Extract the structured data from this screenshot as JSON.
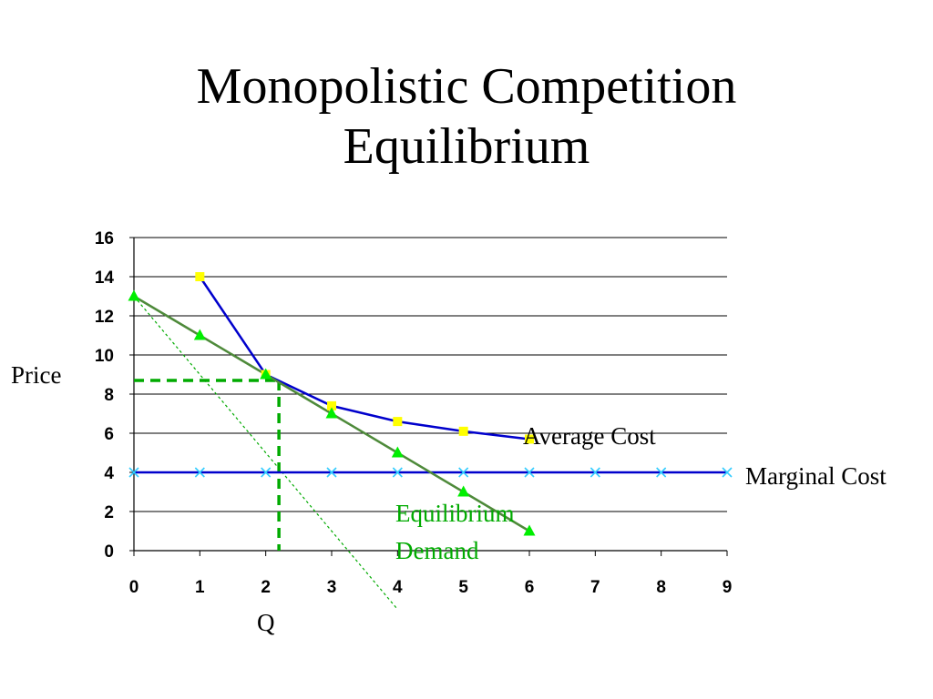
{
  "slide": {
    "title_line1": "Monopolistic Competition",
    "title_line2": "Equilibrium"
  },
  "chart_data": {
    "type": "line",
    "title": "Monopolistic Competition Equilibrium",
    "xlabel": "Q",
    "ylabel": "Price",
    "xlim": [
      0,
      9
    ],
    "ylim": [
      0,
      16
    ],
    "x_ticks": [
      0,
      1,
      2,
      3,
      4,
      5,
      6,
      7,
      8,
      9
    ],
    "y_ticks": [
      0,
      2,
      4,
      6,
      8,
      10,
      12,
      14,
      16
    ],
    "grid": {
      "horizontal": true,
      "vertical": false
    },
    "series": [
      {
        "name": "Average Cost",
        "color": "#0000CC",
        "marker": "square",
        "marker_color": "#FFFF00",
        "x": [
          1,
          2,
          3,
          4,
          5,
          6
        ],
        "y": [
          14,
          9,
          7.4,
          6.6,
          6.1,
          5.7
        ]
      },
      {
        "name": "Marginal Cost",
        "color": "#0000CC",
        "marker": "x",
        "marker_color": "#33CCFF",
        "x": [
          0,
          1,
          2,
          3,
          4,
          5,
          6,
          7,
          8,
          9
        ],
        "y": [
          4,
          4,
          4,
          4,
          4,
          4,
          4,
          4,
          4,
          4
        ]
      },
      {
        "name": "Equilibrium Demand",
        "color": "#4E8A3A",
        "marker": "triangle",
        "marker_color": "#00EE00",
        "x": [
          0,
          1,
          2,
          3,
          4,
          5,
          6
        ],
        "y": [
          13,
          11,
          9,
          7,
          5,
          3,
          1
        ]
      }
    ],
    "marginal_revenue": {
      "color": "#00AA00",
      "style": "dotted",
      "x": [
        0,
        4
      ],
      "y": [
        13,
        -3
      ]
    },
    "equilibrium": {
      "color": "#00AA00",
      "style": "dashed",
      "q": 2.2,
      "p": 8.7
    },
    "annotations": [
      {
        "text": "Average Cost",
        "color": "#000000"
      },
      {
        "text": "Marginal Cost",
        "color": "#000000"
      },
      {
        "text": "Equilibrium",
        "color": "#00AA00"
      },
      {
        "text": "Demand",
        "color": "#00AA00"
      }
    ]
  }
}
